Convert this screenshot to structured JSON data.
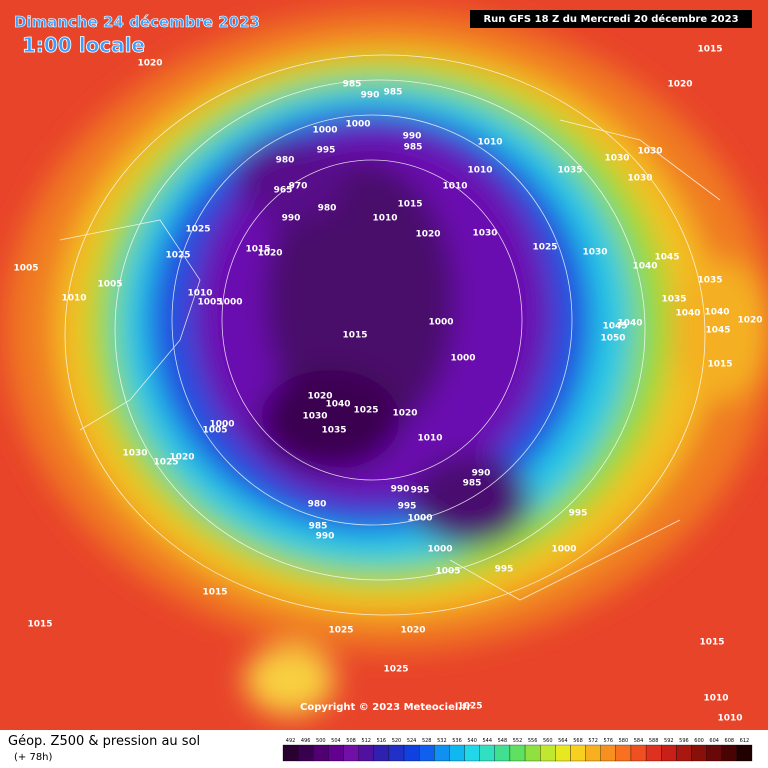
{
  "header": {
    "date": "Dimanche 24 décembre 2023",
    "time": "1:00 locale",
    "run": "Run GFS 18 Z du Mercredi 20 décembre 2023"
  },
  "copyright": "Copyright © 2023 Meteociel.fr",
  "footer": {
    "title": "Géop. Z500 & pression au sol",
    "lead": "(+ 78h)"
  },
  "isobar_labels": [
    1015,
    1020,
    1020,
    985,
    990,
    985,
    1000,
    1000,
    990,
    985,
    995,
    980,
    1010,
    1035,
    1030,
    1030,
    1030,
    965,
    970,
    1010,
    1010,
    1015,
    980,
    990,
    1010,
    1025,
    1020,
    1030,
    1025,
    1030,
    1040,
    1045,
    1015,
    1020,
    1025,
    1005,
    1005,
    1035,
    1010,
    1005,
    1000,
    1035,
    1040,
    1040,
    1045,
    1020,
    1000,
    1015,
    1045,
    1040,
    1050,
    1000,
    1015,
    1010,
    1020,
    1040,
    1030,
    1025,
    1020,
    1035,
    1010,
    1000,
    1005,
    1030,
    1025,
    1020,
    990,
    985,
    990,
    995,
    995,
    980,
    995,
    1000,
    985,
    990,
    1000,
    1000,
    1005,
    995,
    1015,
    1015,
    1025,
    1020,
    1025,
    1015,
    1010,
    1010,
    1025
  ],
  "colorbar": {
    "labels": [
      492,
      496,
      500,
      504,
      508,
      512,
      516,
      520,
      524,
      528,
      532,
      536,
      540,
      544,
      548,
      552,
      556,
      560,
      564,
      568,
      572,
      576,
      580,
      584,
      588,
      592,
      596,
      600,
      604,
      608,
      612
    ],
    "colors": [
      "#2a0030",
      "#3a0050",
      "#500070",
      "#640090",
      "#7010a8",
      "#5010a0",
      "#3020b0",
      "#2030c8",
      "#1040e0",
      "#1060f0",
      "#1090f0",
      "#10b8f0",
      "#20d8e8",
      "#30e0c0",
      "#40e090",
      "#60e060",
      "#90e040",
      "#c0e830",
      "#e8e820",
      "#f8d020",
      "#f8b020",
      "#f89020",
      "#f87020",
      "#f05020",
      "#e03020",
      "#c82018",
      "#a81810",
      "#881008",
      "#680808",
      "#480404",
      "#200000"
    ]
  }
}
